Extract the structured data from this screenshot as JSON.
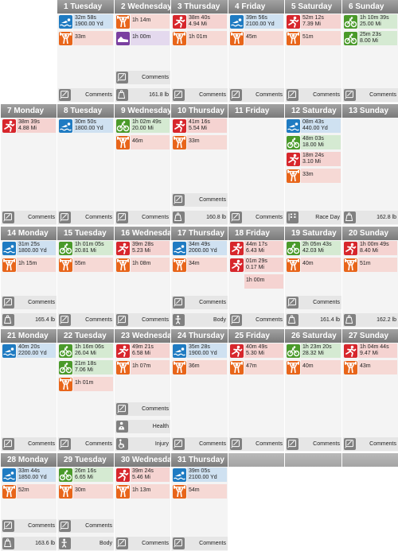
{
  "colors": {
    "swim": "#1f7bc2",
    "bike": "#4a9a2a",
    "run": "#d7262c",
    "lift": "#e8651a",
    "misc": "#7a3fa0",
    "footer": "#808080"
  },
  "weeks": [
    [
      {
        "empty": true
      },
      {
        "label": "1 Tuesday",
        "entries": [
          {
            "sport": "swim",
            "icon": "swimmer-icon",
            "lines": [
              "32m 58s",
              "1900.00 Yd"
            ]
          },
          {
            "sport": "lift",
            "icon": "weightlifter-icon",
            "lines": [
              "33m"
            ]
          }
        ],
        "footers": [
          {
            "icon": "comments-icon",
            "text": "Comments"
          }
        ]
      },
      {
        "label": "2 Wednesday",
        "entries": [
          {
            "sport": "lift",
            "icon": "weightlifter-icon",
            "lines": [
              "1h 14m"
            ]
          },
          {
            "sport": "misc",
            "icon": "shoe-icon",
            "lines": [
              "1h 00m"
            ]
          }
        ],
        "footers": [
          {
            "icon": "comments-icon",
            "text": "Comments"
          },
          {
            "icon": "weight-icon",
            "text": "161.8 lb"
          }
        ]
      },
      {
        "label": "3 Thursday",
        "entries": [
          {
            "sport": "run",
            "icon": "runner-icon",
            "lines": [
              "38m 40s",
              "4.94 Mi"
            ]
          },
          {
            "sport": "lift",
            "icon": "weightlifter-icon",
            "lines": [
              "1h 01m"
            ]
          }
        ],
        "footers": [
          {
            "icon": "comments-icon",
            "text": "Comments"
          }
        ]
      },
      {
        "label": "4 Friday",
        "entries": [
          {
            "sport": "swim",
            "icon": "swimmer-icon",
            "lines": [
              "39m 56s",
              "2100.00 Yd"
            ]
          },
          {
            "sport": "lift",
            "icon": "weightlifter-icon",
            "lines": [
              "45m"
            ]
          }
        ],
        "footers": [
          {
            "icon": "comments-icon",
            "text": "Comments"
          }
        ]
      },
      {
        "label": "5 Saturday",
        "entries": [
          {
            "sport": "run",
            "icon": "runner-icon",
            "lines": [
              "52m 12s",
              "7.39 Mi"
            ]
          },
          {
            "sport": "lift",
            "icon": "weightlifter-icon",
            "lines": [
              "51m"
            ]
          }
        ],
        "footers": [
          {
            "icon": "comments-icon",
            "text": "Comments"
          }
        ]
      },
      {
        "label": "6 Sunday",
        "entries": [
          {
            "sport": "bike",
            "icon": "bike-icon",
            "lines": [
              "1h 10m 39s",
              "25.00 Mi"
            ]
          },
          {
            "sport": "bike",
            "icon": "bike-icon",
            "lines": [
              "25m 23s",
              "8.00 Mi"
            ]
          }
        ],
        "footers": [
          {
            "icon": "comments-icon",
            "text": "Comments"
          }
        ]
      }
    ],
    [
      {
        "label": "7 Monday",
        "entries": [
          {
            "sport": "run",
            "icon": "runner-icon",
            "lines": [
              "38m 39s",
              "4.88 Mi"
            ]
          }
        ],
        "footers": [
          {
            "icon": "comments-icon",
            "text": "Comments"
          }
        ]
      },
      {
        "label": "8 Tuesday",
        "entries": [
          {
            "sport": "swim",
            "icon": "swimmer-icon",
            "lines": [
              "30m 50s",
              "1800.00 Yd"
            ]
          }
        ],
        "footers": [
          {
            "icon": "comments-icon",
            "text": "Comments"
          }
        ]
      },
      {
        "label": "9 Wednesday",
        "entries": [
          {
            "sport": "bike",
            "icon": "bike-icon",
            "lines": [
              "1h 02m 49s",
              "20.00 Mi"
            ]
          },
          {
            "sport": "lift",
            "icon": "weightlifter-icon",
            "lines": [
              "46m"
            ]
          }
        ],
        "footers": [
          {
            "icon": "comments-icon",
            "text": "Comments"
          }
        ]
      },
      {
        "label": "10 Thursday",
        "entries": [
          {
            "sport": "run",
            "icon": "runner-icon",
            "lines": [
              "41m 16s",
              "5.54 Mi"
            ]
          },
          {
            "sport": "lift",
            "icon": "weightlifter-icon",
            "lines": [
              "33m"
            ]
          }
        ],
        "footers": [
          {
            "icon": "comments-icon",
            "text": "Comments"
          },
          {
            "icon": "weight-icon",
            "text": "160.8 lb"
          }
        ]
      },
      {
        "label": "11 Friday",
        "entries": [],
        "footers": [
          {
            "icon": "comments-icon",
            "text": "Comments"
          }
        ]
      },
      {
        "label": "12 Saturday",
        "entries": [
          {
            "sport": "swim",
            "icon": "swimmer-icon",
            "lines": [
              "08m 43s",
              "440.00 Yd"
            ]
          },
          {
            "sport": "bike",
            "icon": "bike-icon",
            "lines": [
              "48m 03s",
              "18.00 Mi"
            ]
          },
          {
            "sport": "run",
            "icon": "runner-icon",
            "lines": [
              "18m 24s",
              "3.10 Mi"
            ]
          },
          {
            "sport": "lift",
            "icon": "weightlifter-icon",
            "lines": [
              "33m"
            ]
          }
        ],
        "footers": [
          {
            "icon": "race-flag-icon",
            "text": "Race Day"
          }
        ]
      },
      {
        "label": "13 Sunday",
        "entries": [],
        "footers": [
          {
            "icon": "weight-icon",
            "text": "162.8 lb"
          }
        ]
      }
    ],
    [
      {
        "label": "14 Monday",
        "entries": [
          {
            "sport": "swim",
            "icon": "swimmer-icon",
            "lines": [
              "31m 25s",
              "1800.00 Yd"
            ]
          },
          {
            "sport": "lift",
            "icon": "weightlifter-icon",
            "lines": [
              "1h 15m"
            ]
          }
        ],
        "footers": [
          {
            "icon": "comments-icon",
            "text": "Comments"
          },
          {
            "icon": "weight-icon",
            "text": "165.4 lb"
          }
        ]
      },
      {
        "label": "15 Tuesday",
        "entries": [
          {
            "sport": "bike",
            "icon": "bike-icon",
            "lines": [
              "1h 01m 05s",
              "20.81 Mi"
            ]
          },
          {
            "sport": "lift",
            "icon": "weightlifter-icon",
            "lines": [
              "55m"
            ]
          }
        ],
        "footers": [
          {
            "icon": "comments-icon",
            "text": "Comments"
          }
        ]
      },
      {
        "label": "16 Wednesday",
        "entries": [
          {
            "sport": "run",
            "icon": "runner-icon",
            "lines": [
              "39m 28s",
              "5.23 Mi"
            ]
          },
          {
            "sport": "lift",
            "icon": "weightlifter-icon",
            "lines": [
              "1h 08m"
            ]
          }
        ],
        "footers": [
          {
            "icon": "comments-icon",
            "text": "Comments"
          }
        ]
      },
      {
        "label": "17 Thursday",
        "entries": [
          {
            "sport": "swim",
            "icon": "swimmer-icon",
            "lines": [
              "34m 49s",
              "2000.00 Yd"
            ]
          },
          {
            "sport": "lift",
            "icon": "weightlifter-icon",
            "lines": [
              "34m"
            ]
          }
        ],
        "footers": [
          {
            "icon": "comments-icon",
            "text": "Comments"
          },
          {
            "icon": "body-icon",
            "text": "Body"
          }
        ]
      },
      {
        "label": "18 Friday",
        "entries": [
          {
            "sport": "run",
            "icon": "runner-icon",
            "lines": [
              "44m 17s",
              "6.43 Mi"
            ]
          },
          {
            "sport": "run",
            "icon": "runner-icon",
            "lines": [
              "01m 29s",
              "0.17 Mi"
            ]
          },
          {
            "sport": "run",
            "icon": "",
            "lines": [
              "1h 00m"
            ]
          }
        ],
        "footers": [
          {
            "icon": "comments-icon",
            "text": "Comments"
          }
        ]
      },
      {
        "label": "19 Saturday",
        "entries": [
          {
            "sport": "bike",
            "icon": "bike-icon",
            "lines": [
              "2h 05m 43s",
              "42.03 Mi"
            ]
          },
          {
            "sport": "lift",
            "icon": "weightlifter-icon",
            "lines": [
              "40m"
            ]
          }
        ],
        "footers": [
          {
            "icon": "comments-icon",
            "text": "Comments"
          },
          {
            "icon": "weight-icon",
            "text": "161.4 lb"
          }
        ]
      },
      {
        "label": "20 Sunday",
        "entries": [
          {
            "sport": "run",
            "icon": "runner-icon",
            "lines": [
              "1h 00m 49s",
              "8.40 Mi"
            ]
          },
          {
            "sport": "lift",
            "icon": "weightlifter-icon",
            "lines": [
              "51m"
            ]
          }
        ],
        "footers": [
          {
            "icon": "weight-icon",
            "text": "162.2 lb"
          }
        ]
      }
    ],
    [
      {
        "label": "21 Monday",
        "entries": [
          {
            "sport": "swim",
            "icon": "swimmer-icon",
            "lines": [
              "40m 20s",
              "2200.00 Yd"
            ]
          }
        ],
        "footers": [
          {
            "icon": "comments-icon",
            "text": "Comments"
          }
        ]
      },
      {
        "label": "22 Tuesday",
        "entries": [
          {
            "sport": "bike",
            "icon": "bike-icon",
            "lines": [
              "1h 16m 06s",
              "26.04 Mi"
            ]
          },
          {
            "sport": "bike",
            "icon": "bike-icon",
            "lines": [
              "21m 18s",
              "7.06 Mi"
            ]
          },
          {
            "sport": "lift",
            "icon": "weightlifter-icon",
            "lines": [
              "1h 01m"
            ]
          }
        ],
        "footers": [
          {
            "icon": "comments-icon",
            "text": "Comments"
          }
        ]
      },
      {
        "label": "23 Wednesday",
        "entries": [
          {
            "sport": "run",
            "icon": "runner-icon",
            "lines": [
              "49m 21s",
              "6.58 Mi"
            ]
          },
          {
            "sport": "lift",
            "icon": "weightlifter-icon",
            "lines": [
              "1h 07m"
            ]
          }
        ],
        "footers": [
          {
            "icon": "comments-icon",
            "text": "Comments"
          },
          {
            "icon": "health-icon",
            "text": "Health"
          },
          {
            "icon": "injury-icon",
            "text": "Injury"
          }
        ]
      },
      {
        "label": "24 Thursday",
        "entries": [
          {
            "sport": "swim",
            "icon": "swimmer-icon",
            "lines": [
              "35m 28s",
              "1900.00 Yd"
            ]
          },
          {
            "sport": "lift",
            "icon": "weightlifter-icon",
            "lines": [
              "36m"
            ]
          }
        ],
        "footers": [
          {
            "icon": "comments-icon",
            "text": "Comments"
          }
        ]
      },
      {
        "label": "25 Friday",
        "entries": [
          {
            "sport": "run",
            "icon": "runner-icon",
            "lines": [
              "40m 49s",
              "5.30 Mi"
            ]
          },
          {
            "sport": "lift",
            "icon": "weightlifter-icon",
            "lines": [
              "47m"
            ]
          }
        ],
        "footers": [
          {
            "icon": "comments-icon",
            "text": "Comments"
          }
        ]
      },
      {
        "label": "26 Saturday",
        "entries": [
          {
            "sport": "bike",
            "icon": "bike-icon",
            "lines": [
              "1h 23m 20s",
              "28.32 Mi"
            ]
          },
          {
            "sport": "lift",
            "icon": "weightlifter-icon",
            "lines": [
              "40m"
            ]
          }
        ],
        "footers": [
          {
            "icon": "comments-icon",
            "text": "Comments"
          }
        ]
      },
      {
        "label": "27 Sunday",
        "entries": [
          {
            "sport": "run",
            "icon": "runner-icon",
            "lines": [
              "1h 04m 44s",
              "9.47 Mi"
            ]
          },
          {
            "sport": "lift",
            "icon": "weightlifter-icon",
            "lines": [
              "43m"
            ]
          }
        ],
        "footers": [
          {
            "icon": "comments-icon",
            "text": "Comments"
          }
        ]
      }
    ],
    [
      {
        "label": "28 Monday",
        "entries": [
          {
            "sport": "swim",
            "icon": "swimmer-icon",
            "lines": [
              "33m 44s",
              "1850.00 Yd"
            ]
          },
          {
            "sport": "lift",
            "icon": "weightlifter-icon",
            "lines": [
              "52m"
            ]
          }
        ],
        "footers": [
          {
            "icon": "comments-icon",
            "text": "Comments"
          },
          {
            "icon": "weight-icon",
            "text": "163.6 lb"
          }
        ]
      },
      {
        "label": "29 Tuesday",
        "entries": [
          {
            "sport": "bike",
            "icon": "bike-icon",
            "lines": [
              "26m 16s",
              "6.65 Mi"
            ]
          },
          {
            "sport": "lift",
            "icon": "weightlifter-icon",
            "lines": [
              "30m"
            ]
          }
        ],
        "footers": [
          {
            "icon": "comments-icon",
            "text": "Comments"
          },
          {
            "icon": "body-icon",
            "text": "Body"
          }
        ]
      },
      {
        "label": "30 Wednesday",
        "entries": [
          {
            "sport": "run",
            "icon": "runner-icon",
            "lines": [
              "39m 24s",
              "5.46 Mi"
            ]
          },
          {
            "sport": "lift",
            "icon": "weightlifter-icon",
            "lines": [
              "1h 13m"
            ]
          }
        ],
        "footers": [
          {
            "icon": "comments-icon",
            "text": "Comments"
          }
        ]
      },
      {
        "label": "31 Thursday",
        "entries": [
          {
            "sport": "swim",
            "icon": "swimmer-icon",
            "lines": [
              "39m 05s",
              "2100.00 Yd"
            ]
          },
          {
            "sport": "lift",
            "icon": "weightlifter-icon",
            "lines": [
              "54m"
            ]
          }
        ],
        "footers": [
          {
            "icon": "comments-icon",
            "text": "Comments"
          }
        ]
      },
      {
        "empty": true
      },
      {
        "empty": true
      },
      {
        "empty": true
      }
    ]
  ]
}
